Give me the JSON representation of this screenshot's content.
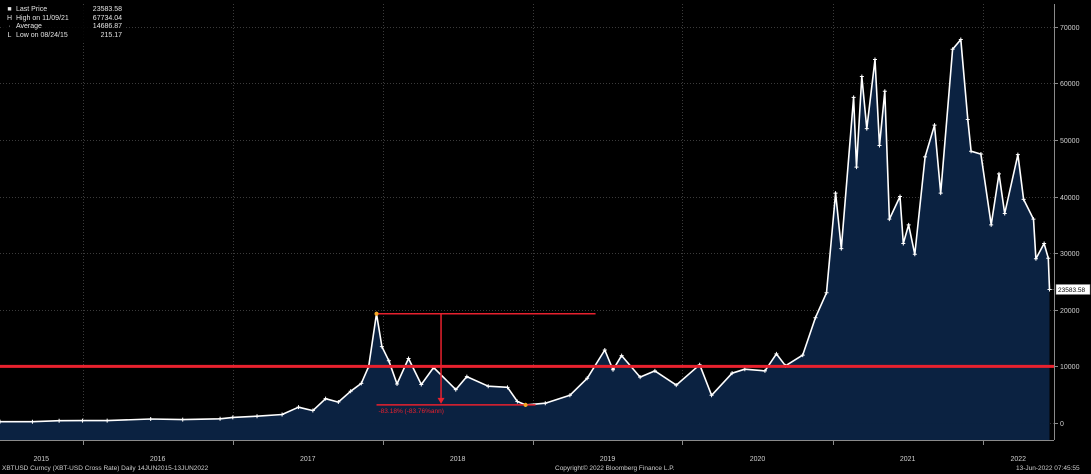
{
  "legend": {
    "rows": [
      {
        "marker": "■",
        "label": "Last Price",
        "value": "23583.58"
      },
      {
        "marker": "H",
        "label": "High on 11/09/21",
        "value": "67734.04"
      },
      {
        "marker": "·",
        "label": "Average",
        "value": "14686.87"
      },
      {
        "marker": "L",
        "label": "Low on 08/24/15",
        "value": "215.17"
      }
    ]
  },
  "footer": {
    "left": "XBTUSD Curncy (XBT-USD Cross Rate)  Daily 14JUN2015-13JUN2022",
    "center": "Copyright© 2022 Bloomberg Finance L.P.",
    "right": "13-Jun-2022 07:45:55"
  },
  "colors": {
    "background": "#000000",
    "area_fill": "#0b2241",
    "line": "#ffffff",
    "annotation": "#e8212e",
    "grid": "#3b3b3b"
  },
  "chart_data": {
    "type": "area",
    "x_tick_labels": [
      "2015",
      "2016",
      "2017",
      "2018",
      "2019",
      "2020",
      "2021",
      "2022"
    ],
    "y_tick_labels": [
      "0",
      "10000",
      "20000",
      "30000",
      "40000",
      "50000",
      "60000",
      "70000"
    ],
    "ylim": [
      -3000,
      74000
    ],
    "grid": true,
    "y_axis_side": "right",
    "last_value_label": "23583.58",
    "horizontal_line": {
      "value": 10000
    },
    "drawdown_annotation": {
      "from": {
        "date": "2017-12-17",
        "value": 19300
      },
      "to": {
        "date": "2018-12-15",
        "value": 3200
      },
      "label": "-83.18% (-83.76%ann)"
    },
    "series": [
      {
        "points": [
          [
            "2015-06-14",
            235
          ],
          [
            "2015-09-01",
            230
          ],
          [
            "2015-11-05",
            400
          ],
          [
            "2016-01-01",
            430
          ],
          [
            "2016-03-01",
            420
          ],
          [
            "2016-06-15",
            700
          ],
          [
            "2016-09-01",
            600
          ],
          [
            "2016-12-01",
            750
          ],
          [
            "2017-01-01",
            1000
          ],
          [
            "2017-03-01",
            1200
          ],
          [
            "2017-05-01",
            1500
          ],
          [
            "2017-06-10",
            2800
          ],
          [
            "2017-07-15",
            2200
          ],
          [
            "2017-08-15",
            4300
          ],
          [
            "2017-09-15",
            3700
          ],
          [
            "2017-10-15",
            5600
          ],
          [
            "2017-11-10",
            7000
          ],
          [
            "2017-11-28",
            10000
          ],
          [
            "2017-12-17",
            19300
          ],
          [
            "2017-12-30",
            13500
          ],
          [
            "2018-01-16",
            11000
          ],
          [
            "2018-02-05",
            6900
          ],
          [
            "2018-03-05",
            11400
          ],
          [
            "2018-04-05",
            6800
          ],
          [
            "2018-05-05",
            9800
          ],
          [
            "2018-06-28",
            5900
          ],
          [
            "2018-07-25",
            8200
          ],
          [
            "2018-09-15",
            6500
          ],
          [
            "2018-11-01",
            6300
          ],
          [
            "2018-11-25",
            3800
          ],
          [
            "2018-12-15",
            3200
          ],
          [
            "2019-02-01",
            3500
          ],
          [
            "2019-04-02",
            4900
          ],
          [
            "2019-05-14",
            7900
          ],
          [
            "2019-06-26",
            12900
          ],
          [
            "2019-07-16",
            9400
          ],
          [
            "2019-08-06",
            11900
          ],
          [
            "2019-09-20",
            8100
          ],
          [
            "2019-10-26",
            9200
          ],
          [
            "2019-12-17",
            6700
          ],
          [
            "2020-02-12",
            10300
          ],
          [
            "2020-03-12",
            4900
          ],
          [
            "2020-05-01",
            8800
          ],
          [
            "2020-06-01",
            9500
          ],
          [
            "2020-07-20",
            9200
          ],
          [
            "2020-08-17",
            12200
          ],
          [
            "2020-09-08",
            10100
          ],
          [
            "2020-10-20",
            12000
          ],
          [
            "2020-11-20",
            18600
          ],
          [
            "2020-12-17",
            23000
          ],
          [
            "2021-01-08",
            40600
          ],
          [
            "2021-01-22",
            30800
          ],
          [
            "2021-02-21",
            57500
          ],
          [
            "2021-02-28",
            45200
          ],
          [
            "2021-03-13",
            61200
          ],
          [
            "2021-03-25",
            52000
          ],
          [
            "2021-04-14",
            64200
          ],
          [
            "2021-04-25",
            49000
          ],
          [
            "2021-05-08",
            58600
          ],
          [
            "2021-05-19",
            36000
          ],
          [
            "2021-06-14",
            40000
          ],
          [
            "2021-06-22",
            31700
          ],
          [
            "2021-07-05",
            35000
          ],
          [
            "2021-07-20",
            29800
          ],
          [
            "2021-08-14",
            47000
          ],
          [
            "2021-09-06",
            52600
          ],
          [
            "2021-09-21",
            40600
          ],
          [
            "2021-10-20",
            66000
          ],
          [
            "2021-11-09",
            67734
          ],
          [
            "2021-11-26",
            53600
          ],
          [
            "2021-12-04",
            48000
          ],
          [
            "2021-12-28",
            47500
          ],
          [
            "2022-01-22",
            35000
          ],
          [
            "2022-02-10",
            44000
          ],
          [
            "2022-02-24",
            37000
          ],
          [
            "2022-03-28",
            47400
          ],
          [
            "2022-04-11",
            39500
          ],
          [
            "2022-05-05",
            36000
          ],
          [
            "2022-05-11",
            29000
          ],
          [
            "2022-05-31",
            31700
          ],
          [
            "2022-06-10",
            29100
          ],
          [
            "2022-06-13",
            23583
          ]
        ]
      }
    ]
  }
}
